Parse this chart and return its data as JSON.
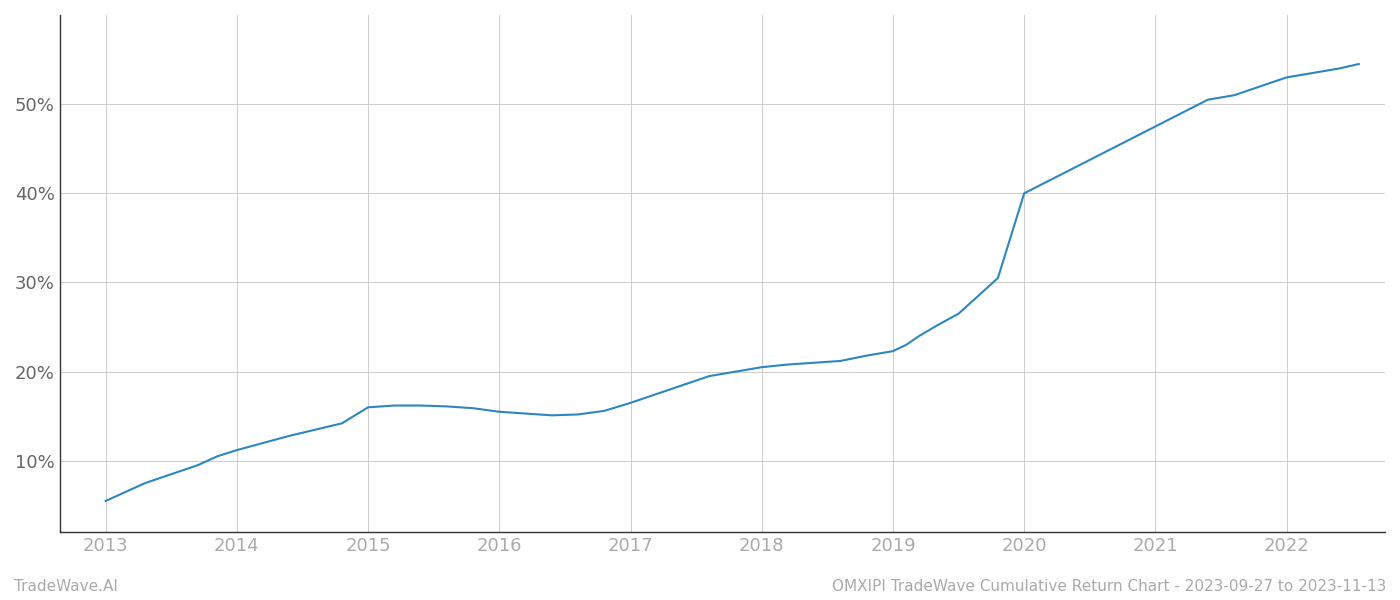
{
  "x_values": [
    2013.0,
    2013.15,
    2013.3,
    2013.5,
    2013.7,
    2013.85,
    2014.0,
    2014.2,
    2014.4,
    2014.6,
    2014.8,
    2015.0,
    2015.2,
    2015.4,
    2015.6,
    2015.8,
    2016.0,
    2016.2,
    2016.4,
    2016.6,
    2016.8,
    2017.0,
    2017.2,
    2017.4,
    2017.6,
    2017.8,
    2018.0,
    2018.2,
    2018.4,
    2018.6,
    2018.8,
    2019.0,
    2019.1,
    2019.2,
    2019.35,
    2019.5,
    2019.65,
    2019.8,
    2020.0,
    2020.2,
    2020.4,
    2020.6,
    2020.8,
    2021.0,
    2021.2,
    2021.4,
    2021.6,
    2021.8,
    2022.0,
    2022.2,
    2022.4,
    2022.55
  ],
  "y_values": [
    5.5,
    6.5,
    7.5,
    8.5,
    9.5,
    10.5,
    11.2,
    12.0,
    12.8,
    13.5,
    14.2,
    16.0,
    16.2,
    16.2,
    16.1,
    15.9,
    15.5,
    15.3,
    15.1,
    15.2,
    15.6,
    16.5,
    17.5,
    18.5,
    19.5,
    20.0,
    20.5,
    20.8,
    21.0,
    21.2,
    21.8,
    22.3,
    23.0,
    24.0,
    25.3,
    26.5,
    28.5,
    30.5,
    40.0,
    41.5,
    43.0,
    44.5,
    46.0,
    47.5,
    49.0,
    50.5,
    51.0,
    52.0,
    53.0,
    53.5,
    54.0,
    54.5
  ],
  "line_color": "#2e86c1",
  "background_color": "#ffffff",
  "grid_color": "#cccccc",
  "xlim": [
    2012.65,
    2022.75
  ],
  "ylim": [
    2.0,
    60.0
  ],
  "yticks": [
    10,
    20,
    30,
    40,
    50
  ],
  "xticks": [
    2013,
    2014,
    2015,
    2016,
    2017,
    2018,
    2019,
    2020,
    2021,
    2022
  ],
  "xlabel_color": "#aaaaaa",
  "ylabel_color": "#666666",
  "footer_left": "TradeWave.AI",
  "footer_right": "OMXIPI TradeWave Cumulative Return Chart - 2023-09-27 to 2023-11-13",
  "footer_color": "#aaaaaa",
  "footer_fontsize": 11,
  "line_width": 1.5,
  "tick_fontsize": 13,
  "spine_color": "#333333",
  "left_spine_color": "#333333"
}
